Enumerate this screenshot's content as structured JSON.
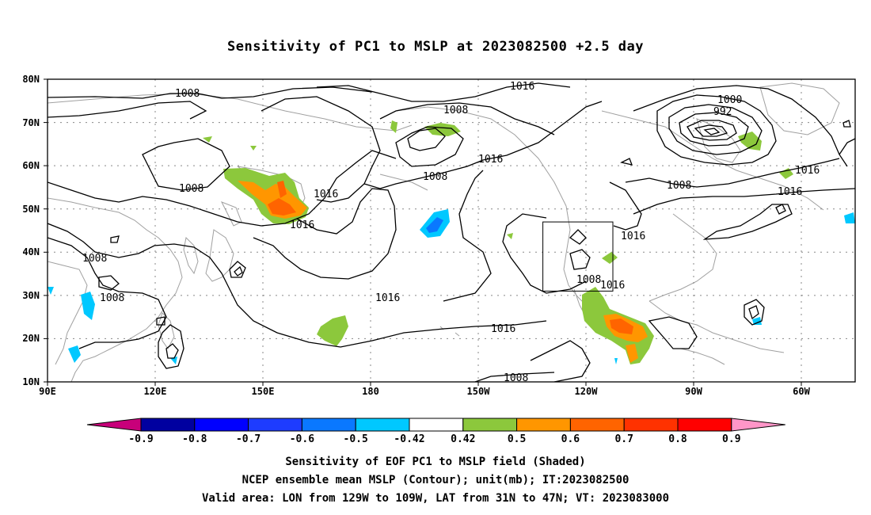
{
  "title": "Sensitivity of PC1 to MSLP at 2023082500 +2.5 day",
  "lat_ticks": [
    "80N",
    "70N",
    "60N",
    "50N",
    "40N",
    "30N",
    "20N",
    "10N"
  ],
  "lon_ticks": [
    "90E",
    "120E",
    "150E",
    "180",
    "150W",
    "120W",
    "90W",
    "60W"
  ],
  "contour_labels": [
    "1008",
    "1008",
    "1016",
    "1016",
    "1016",
    "1016",
    "1008",
    "1008",
    "1016",
    "1000",
    "992",
    "1008",
    "1016",
    "1016",
    "1016",
    "1008",
    "1008",
    "1016",
    "1016",
    "1008",
    "1016",
    "1008"
  ],
  "colorbar": {
    "labels": [
      "-0.9",
      "-0.8",
      "-0.7",
      "-0.6",
      "-0.5",
      "-0.42",
      "0.42",
      "0.5",
      "0.6",
      "0.7",
      "0.8",
      "0.9"
    ],
    "colors": [
      "#c8007a",
      "#0000a0",
      "#0000ff",
      "#1e3cff",
      "#0a78ff",
      "#00c8ff",
      "#ffffff",
      "#8cc83c",
      "#ff9600",
      "#ff6400",
      "#ff3200",
      "#ff0000",
      "#ff96c8"
    ]
  },
  "captions": [
    "Sensitivity of EOF PC1 to MSLP field (Shaded)",
    "NCEP ensemble mean MSLP (Contour); unit(mb); IT:2023082500",
    "Valid area: LON from 129W to 109W, LAT from 31N to 47N; VT: 2023083000"
  ]
}
